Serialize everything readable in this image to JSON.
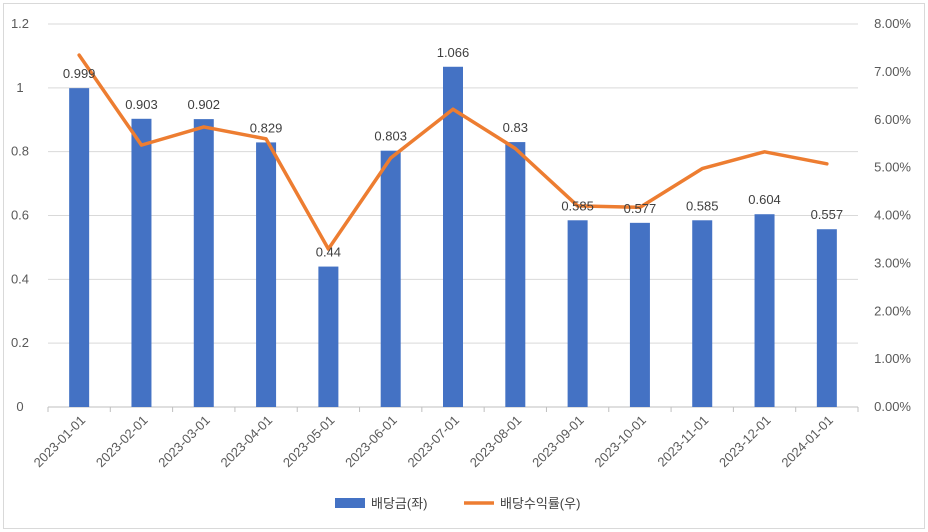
{
  "chart_data": {
    "type": "bar",
    "categories": [
      "2023-01-01",
      "2023-02-01",
      "2023-03-01",
      "2023-04-01",
      "2023-05-01",
      "2023-06-01",
      "2023-07-01",
      "2023-08-01",
      "2023-09-01",
      "2023-10-01",
      "2023-11-01",
      "2023-12-01",
      "2024-01-01"
    ],
    "series": [
      {
        "name": "배당금(좌)",
        "type": "bar",
        "axis": "left",
        "color": "#4472C4",
        "values": [
          0.999,
          0.903,
          0.902,
          0.829,
          0.44,
          0.803,
          1.066,
          0.83,
          0.585,
          0.577,
          0.585,
          0.604,
          0.557
        ],
        "labels": [
          "0.999",
          "0.903",
          "0.902",
          "0.829",
          "0.44",
          "0.803",
          "1.066",
          "0.83",
          "0.585",
          "0.577",
          "0.585",
          "0.604",
          "0.557"
        ]
      },
      {
        "name": "배당수익률(우)",
        "type": "line",
        "axis": "right",
        "color": "#ED7D31",
        "values": [
          7.35,
          5.47,
          5.85,
          5.6,
          3.3,
          5.2,
          6.22,
          5.4,
          4.2,
          4.17,
          4.98,
          5.33,
          5.08
        ]
      }
    ],
    "left_axis": {
      "ylim": [
        0,
        1.2
      ],
      "ticks": [
        0,
        0.2,
        0.4,
        0.6,
        0.8,
        1,
        1.2
      ],
      "tick_labels": [
        "0",
        "0.2",
        "0.4",
        "0.6",
        "0.8",
        "1",
        "1.2"
      ]
    },
    "right_axis": {
      "ylim": [
        0,
        8
      ],
      "ticks": [
        0,
        1,
        2,
        3,
        4,
        5,
        6,
        7,
        8
      ],
      "tick_labels": [
        "0.00%",
        "1.00%",
        "2.00%",
        "3.00%",
        "4.00%",
        "5.00%",
        "6.00%",
        "7.00%",
        "8.00%"
      ]
    },
    "grid": true,
    "legend_position": "bottom"
  }
}
